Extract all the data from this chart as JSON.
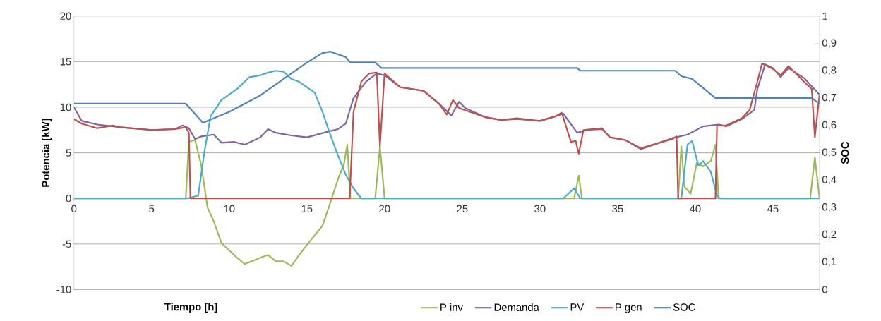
{
  "chart_data": {
    "type": "line",
    "xlabel": "Tiempo [h]",
    "ylabel": "Potencia [kW]",
    "y2label": "SOC",
    "xlim": [
      0,
      48
    ],
    "xticks": [
      0,
      5,
      10,
      15,
      20,
      25,
      30,
      35,
      40,
      45
    ],
    "ylim": [
      -10,
      20
    ],
    "yticks": [
      -10,
      -5,
      0,
      5,
      10,
      15,
      20
    ],
    "y2lim": [
      0,
      1
    ],
    "y2ticks": [
      0,
      {
        "value": 0.1,
        "label": "0,1"
      },
      {
        "value": 0.2,
        "label": "0,2"
      },
      {
        "value": 0.3,
        "label": "0,3"
      },
      {
        "value": 0.4,
        "label": "0,4"
      },
      {
        "value": 0.5,
        "label": "0,5"
      },
      {
        "value": 0.6,
        "label": "0,6"
      },
      {
        "value": 0.7,
        "label": "0,7"
      },
      {
        "value": 0.8,
        "label": "0,8"
      },
      {
        "value": 0.9,
        "label": "0,9"
      },
      1
    ],
    "grid": "y",
    "legend": "bottom",
    "series": [
      {
        "name": "P inv",
        "color": "#9bbb59",
        "x": [
          0,
          7.2,
          7.4,
          7.8,
          8.2,
          8.6,
          9,
          9.5,
          10,
          10.5,
          11,
          12,
          12.5,
          13,
          13.5,
          14,
          14.5,
          15,
          16,
          16.5,
          17,
          17.4,
          17.6,
          17.8,
          19.4,
          19.7,
          20,
          32.2,
          32.5,
          32.7,
          38.9,
          39.1,
          39.3,
          39.7,
          40.1,
          40.5,
          41,
          41.3,
          41.5,
          47.4,
          47.7,
          48
        ],
        "values": [
          0,
          0,
          6.2,
          6.4,
          3.6,
          -1,
          -2.5,
          -4.9,
          -5.7,
          -6.5,
          -7.2,
          -6.5,
          -6.2,
          -6.9,
          -6.9,
          -7.4,
          -6.2,
          -5.1,
          -3,
          -0.5,
          2.1,
          3.9,
          5.9,
          0,
          0,
          5.7,
          0,
          0,
          2.5,
          0,
          0,
          5.7,
          1.3,
          0.5,
          3.9,
          3.5,
          4.1,
          5.9,
          0,
          0,
          4.5,
          0
        ]
      },
      {
        "name": "Demanda",
        "color": "#8064a2",
        "x": [
          0,
          0.5,
          1.5,
          3,
          5,
          6.5,
          7,
          7.4,
          7.8,
          8.2,
          9,
          9.5,
          10.3,
          11,
          12,
          12.5,
          13,
          14,
          15,
          16.3,
          17,
          17.5,
          18,
          18.8,
          19.5,
          20,
          21,
          22.5,
          23.5,
          24.3,
          24.8,
          25.2,
          26.5,
          27.5,
          28.5,
          30,
          31,
          31.5,
          32.4,
          33,
          34,
          34.5,
          35.5,
          36.5,
          37.5,
          38.5,
          39.5,
          40.5,
          41.5,
          42,
          43,
          43.8,
          44,
          44.5,
          45,
          45.5,
          46,
          47,
          48
        ],
        "values": [
          10,
          8.5,
          8.1,
          7.8,
          7.5,
          7.6,
          8,
          7.7,
          6.5,
          6.8,
          7,
          6.1,
          6.2,
          5.9,
          6.7,
          7.6,
          7.2,
          6.9,
          6.7,
          7.3,
          7.6,
          8.2,
          11,
          12.8,
          13.7,
          13.5,
          12.2,
          11.8,
          10.4,
          9.1,
          10.6,
          9.9,
          8.9,
          8.6,
          8.7,
          8.5,
          9,
          9.3,
          7.2,
          7.5,
          7.6,
          6.7,
          6.4,
          5.4,
          6,
          6.6,
          7,
          7.9,
          8.1,
          7.9,
          8.7,
          9.7,
          12,
          14.7,
          14.3,
          13.3,
          14.3,
          13.2,
          11.4
        ]
      },
      {
        "name": "PV",
        "color": "#4bacc6",
        "x": [
          0,
          7.3,
          8,
          8.4,
          8.8,
          9.5,
          10.5,
          11.3,
          12,
          12.5,
          13,
          13.5,
          14,
          14.5,
          15.5,
          16,
          16.5,
          17,
          17.5,
          18,
          18.5,
          31.5,
          32.2,
          32.6,
          39.1,
          39.5,
          39.8,
          40.2,
          40.5,
          41,
          41.4,
          41.6,
          48
        ],
        "values": [
          0,
          0,
          0.3,
          5.1,
          9,
          10.8,
          12,
          13.3,
          13.5,
          13.8,
          14,
          13.9,
          13.1,
          12.8,
          11.6,
          9.5,
          7,
          4.7,
          2.6,
          1.1,
          0,
          0,
          1.1,
          0,
          0,
          5.9,
          6.3,
          3.6,
          4.1,
          2.9,
          0.3,
          0,
          0
        ]
      },
      {
        "name": "P gen",
        "color": "#c0504d",
        "x": [
          0,
          0.5,
          1.5,
          2.5,
          3,
          5,
          6.5,
          7.2,
          7.4,
          7.5,
          17.75,
          18,
          18.5,
          19,
          19.5,
          19.7,
          20,
          21,
          22.5,
          23.5,
          24,
          24.4,
          24.8,
          26.5,
          27.5,
          28.5,
          30,
          31,
          31.4,
          32,
          32.3,
          32.5,
          32.8,
          34,
          34.5,
          35.5,
          36.5,
          37.5,
          38.5,
          38.8,
          38.9,
          41.3,
          41.4,
          42,
          43,
          43.5,
          44,
          44.3,
          45,
          45.5,
          46,
          47,
          47.5,
          47.7,
          48
        ],
        "values": [
          8.7,
          8.2,
          7.7,
          8,
          7.8,
          7.5,
          7.6,
          7.8,
          7.2,
          0,
          0,
          9.5,
          12.8,
          13.7,
          13.8,
          5.7,
          13.7,
          12.2,
          11.8,
          10.4,
          9.2,
          10.8,
          9.9,
          8.9,
          8.6,
          8.8,
          8.5,
          9,
          9.4,
          6.2,
          6.3,
          4.9,
          7.5,
          7.7,
          6.7,
          6.4,
          5.5,
          6,
          6.5,
          6.8,
          0,
          0,
          8,
          8,
          8.8,
          9.7,
          12.8,
          14.8,
          14.2,
          13.5,
          14.5,
          12.8,
          12,
          6.7,
          11.4
        ]
      },
      {
        "name": "SOC",
        "color": "#4f81bd",
        "axis": "y2",
        "x": [
          0,
          7.2,
          8.3,
          10,
          12,
          14,
          15,
          16,
          16.5,
          17,
          17.5,
          17.8,
          19.4,
          19.8,
          32.4,
          32.6,
          38.7,
          39.1,
          39.8,
          41.3,
          47.5,
          48
        ],
        "values": [
          0.68,
          0.68,
          0.61,
          0.65,
          0.71,
          0.79,
          0.83,
          0.865,
          0.87,
          0.86,
          0.85,
          0.83,
          0.83,
          0.81,
          0.81,
          0.8,
          0.8,
          0.78,
          0.77,
          0.7,
          0.7,
          0.68
        ]
      }
    ]
  }
}
